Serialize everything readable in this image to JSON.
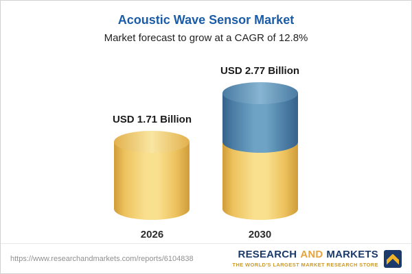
{
  "chart_data": {
    "type": "bar",
    "style": "3d-cylinder",
    "title": "Acoustic Wave Sensor Market",
    "subtitle": "Market forecast to grow at a CAGR of 12.8%",
    "cagr_percent": 12.8,
    "unit": "USD Billion",
    "categories": [
      "2026",
      "2030"
    ],
    "values": [
      1.71,
      2.77
    ],
    "value_labels": [
      "USD 1.71 Billion",
      "USD 2.77 Billion"
    ],
    "series": [
      {
        "name": "gold-segment",
        "color": "#F2CA62",
        "values": [
          1.71,
          1.71
        ]
      },
      {
        "name": "blue-segment",
        "color": "#5B91B6",
        "values": [
          0,
          1.06
        ]
      }
    ],
    "legend": "none",
    "grid": "off"
  },
  "footer": {
    "url": "https://www.researchandmarkets.com/reports/6104838",
    "logo": {
      "word1": "RESEARCH",
      "word2": "AND",
      "word3": "MARKETS",
      "tagline": "THE WORLD'S LARGEST MARKET RESEARCH STORE"
    }
  },
  "colors": {
    "title_blue": "#1A5CA8",
    "cylinder_gold": "#F2CA62",
    "cylinder_blue": "#5B91B6",
    "logo_navy": "#1B3A6B",
    "logo_gold": "#CD9A27"
  }
}
